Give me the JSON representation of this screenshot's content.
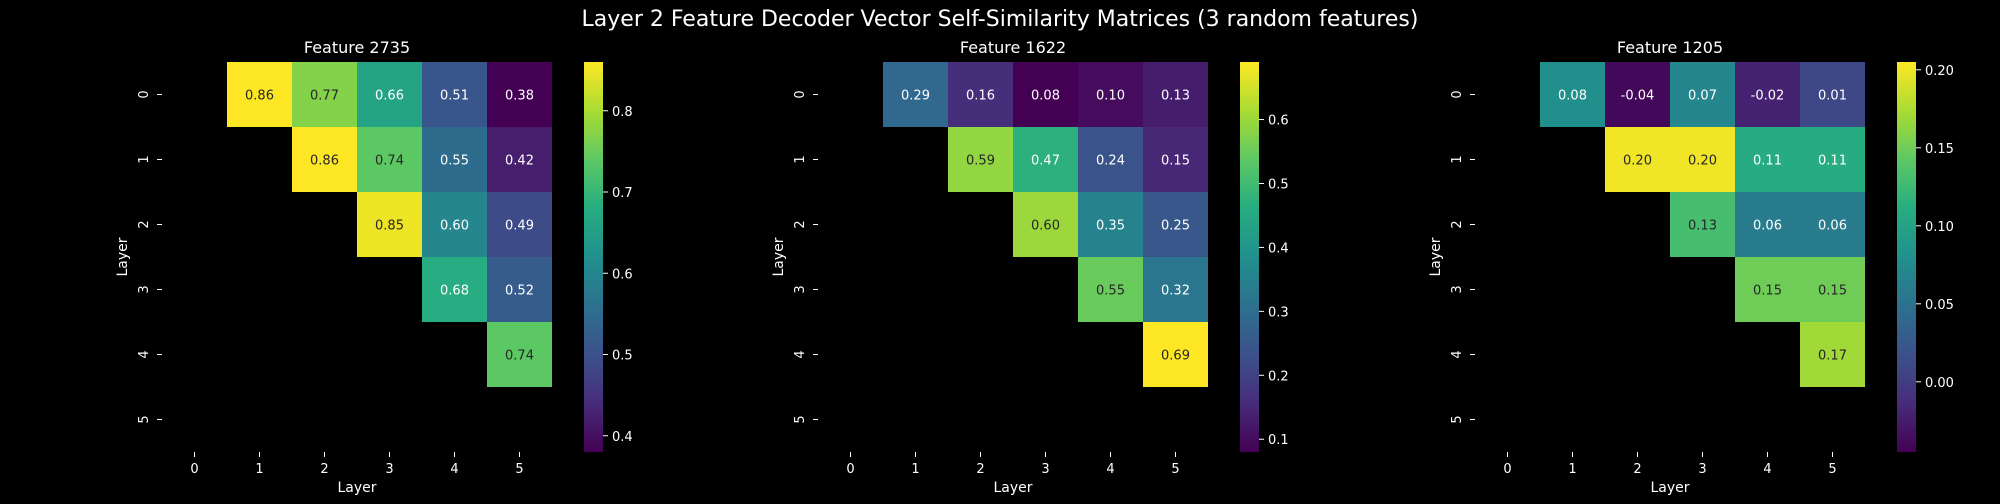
{
  "figure": {
    "title": "Layer 2 Feature Decoder Vector Self-Similarity Matrices (3 random features)",
    "background": "#000000",
    "text_color": "#ffffff",
    "colormap": "viridis"
  },
  "chart_data": [
    {
      "type": "heatmap",
      "title": "Feature 2735",
      "xlabel": "Layer",
      "ylabel": "Layer",
      "x_categories": [
        "0",
        "1",
        "2",
        "3",
        "4",
        "5"
      ],
      "y_categories": [
        "0",
        "1",
        "2",
        "3",
        "4",
        "5"
      ],
      "matrix": [
        [
          null,
          0.86,
          0.77,
          0.66,
          0.51,
          0.38
        ],
        [
          null,
          null,
          0.86,
          0.74,
          0.55,
          0.42
        ],
        [
          null,
          null,
          null,
          0.85,
          0.6,
          0.49
        ],
        [
          null,
          null,
          null,
          null,
          0.68,
          0.52
        ],
        [
          null,
          null,
          null,
          null,
          null,
          0.74
        ],
        [
          null,
          null,
          null,
          null,
          null,
          null
        ]
      ],
      "labels": [
        [
          null,
          "0.86",
          "0.77",
          "0.66",
          "0.51",
          "0.38"
        ],
        [
          null,
          null,
          "0.86",
          "0.74",
          "0.55",
          "0.42"
        ],
        [
          null,
          null,
          null,
          "0.85",
          "0.60",
          "0.49"
        ],
        [
          null,
          null,
          null,
          null,
          "0.68",
          "0.52"
        ],
        [
          null,
          null,
          null,
          null,
          null,
          "0.74"
        ],
        [
          null,
          null,
          null,
          null,
          null,
          null
        ]
      ],
      "colorbar": {
        "vmin": 0.38,
        "vmax": 0.86,
        "ticks": [
          0.4,
          0.5,
          0.6,
          0.7,
          0.8
        ],
        "tick_labels": [
          "0.4",
          "0.5",
          "0.6",
          "0.7",
          "0.8"
        ]
      }
    },
    {
      "type": "heatmap",
      "title": "Feature 1622",
      "xlabel": "Layer",
      "ylabel": "Layer",
      "x_categories": [
        "0",
        "1",
        "2",
        "3",
        "4",
        "5"
      ],
      "y_categories": [
        "0",
        "1",
        "2",
        "3",
        "4",
        "5"
      ],
      "matrix": [
        [
          null,
          0.29,
          0.16,
          0.08,
          0.1,
          0.13
        ],
        [
          null,
          null,
          0.59,
          0.47,
          0.24,
          0.15
        ],
        [
          null,
          null,
          null,
          0.6,
          0.35,
          0.25
        ],
        [
          null,
          null,
          null,
          null,
          0.55,
          0.32
        ],
        [
          null,
          null,
          null,
          null,
          null,
          0.69
        ],
        [
          null,
          null,
          null,
          null,
          null,
          null
        ]
      ],
      "labels": [
        [
          null,
          "0.29",
          "0.16",
          "0.08",
          "0.10",
          "0.13"
        ],
        [
          null,
          null,
          "0.59",
          "0.47",
          "0.24",
          "0.15"
        ],
        [
          null,
          null,
          null,
          "0.60",
          "0.35",
          "0.25"
        ],
        [
          null,
          null,
          null,
          null,
          "0.55",
          "0.32"
        ],
        [
          null,
          null,
          null,
          null,
          null,
          "0.69"
        ],
        [
          null,
          null,
          null,
          null,
          null,
          null
        ]
      ],
      "colorbar": {
        "vmin": 0.08,
        "vmax": 0.69,
        "ticks": [
          0.1,
          0.2,
          0.3,
          0.4,
          0.5,
          0.6
        ],
        "tick_labels": [
          "0.1",
          "0.2",
          "0.3",
          "0.4",
          "0.5",
          "0.6"
        ]
      }
    },
    {
      "type": "heatmap",
      "title": "Feature 1205",
      "xlabel": "Layer",
      "ylabel": "Layer",
      "x_categories": [
        "0",
        "1",
        "2",
        "3",
        "4",
        "5"
      ],
      "y_categories": [
        "0",
        "1",
        "2",
        "3",
        "4",
        "5"
      ],
      "matrix": [
        [
          null,
          0.08,
          -0.04,
          0.07,
          -0.02,
          0.01
        ],
        [
          null,
          null,
          0.2,
          0.2,
          0.11,
          0.11
        ],
        [
          null,
          null,
          null,
          0.13,
          0.06,
          0.06
        ],
        [
          null,
          null,
          null,
          null,
          0.15,
          0.15
        ],
        [
          null,
          null,
          null,
          null,
          null,
          0.17
        ],
        [
          null,
          null,
          null,
          null,
          null,
          null
        ]
      ],
      "labels": [
        [
          null,
          "0.08",
          "-0.04",
          "0.07",
          "-0.02",
          "0.01"
        ],
        [
          null,
          null,
          "0.20",
          "0.20",
          "0.11",
          "0.11"
        ],
        [
          null,
          null,
          null,
          "0.13",
          "0.06",
          "0.06"
        ],
        [
          null,
          null,
          null,
          null,
          "0.15",
          "0.15"
        ],
        [
          null,
          null,
          null,
          null,
          null,
          "0.17"
        ],
        [
          null,
          null,
          null,
          null,
          null,
          null
        ]
      ],
      "colorbar": {
        "vmin": -0.045,
        "vmax": 0.205,
        "ticks": [
          0.0,
          0.05,
          0.1,
          0.15,
          0.2
        ],
        "tick_labels": [
          "0.00",
          "0.05",
          "0.10",
          "0.15",
          "0.20"
        ]
      }
    }
  ]
}
